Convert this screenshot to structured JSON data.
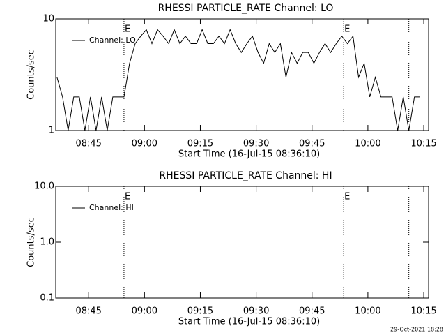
{
  "chart_data": [
    {
      "type": "line",
      "title": "RHESSI PARTICLE_RATE Channel: LO",
      "ylabel": "Counts/sec",
      "xlabel": "Start Time (16-Jul-15 08:36:10)",
      "log_y": true,
      "ylim": [
        1,
        10
      ],
      "yticks": [
        1,
        10
      ],
      "xlim": [
        516.17,
        616.3
      ],
      "xticks": [
        {
          "value": 525,
          "label": "08:45"
        },
        {
          "value": 540,
          "label": "09:00"
        },
        {
          "value": 555,
          "label": "09:15"
        },
        {
          "value": 570,
          "label": "09:30"
        },
        {
          "value": 585,
          "label": "09:45"
        },
        {
          "value": 600,
          "label": "10:00"
        },
        {
          "value": 615,
          "label": "10:15"
        }
      ],
      "markers": [
        {
          "x": 534.5,
          "label": "E"
        },
        {
          "x": 593.5,
          "label": "E"
        },
        {
          "x": 611
        }
      ],
      "x": [
        516.5,
        518,
        519.5,
        521,
        522.5,
        524,
        525.5,
        527,
        528.5,
        530,
        531.5,
        533,
        534.5,
        536,
        537.5,
        539,
        540.5,
        542,
        543.5,
        545,
        546.5,
        548,
        549.5,
        551,
        552.5,
        554,
        555.5,
        557,
        558.5,
        560,
        561.5,
        563,
        564.5,
        566,
        567.5,
        569,
        570.5,
        572,
        573.5,
        575,
        576.5,
        578,
        579.5,
        581,
        582.5,
        584,
        585.5,
        587,
        588.5,
        590,
        591.5,
        593,
        594.5,
        596,
        597.5,
        599,
        600.5,
        602,
        603.5,
        605,
        606.5,
        608,
        609.5,
        611,
        612.5,
        614
      ],
      "series": [
        {
          "name": "Channel: LO",
          "color": "#000000",
          "values": [
            3,
            2,
            1,
            2,
            2,
            1,
            2,
            1,
            2,
            1,
            2,
            2,
            2,
            4,
            6,
            7,
            8,
            6,
            8,
            7,
            6,
            8,
            6,
            7,
            6,
            6,
            8,
            6,
            6,
            7,
            6,
            8,
            6,
            5,
            6,
            7,
            5,
            4,
            6,
            5,
            6,
            3,
            5,
            4,
            5,
            5,
            4,
            5,
            6,
            5,
            6,
            7,
            6,
            7,
            3,
            4,
            2,
            3,
            2,
            2,
            2,
            1,
            2,
            1,
            2,
            2
          ]
        }
      ]
    },
    {
      "type": "line",
      "title": "RHESSI PARTICLE_RATE Channel: HI",
      "ylabel": "Counts/sec",
      "xlabel": "Start Time (16-Jul-15 08:36:10)",
      "log_y": true,
      "ylim": [
        0.1,
        10
      ],
      "yticks": [
        0.1,
        {
          "value": 1,
          "label": "1.0"
        },
        {
          "value": 10,
          "label": "10.0"
        }
      ],
      "xlim": [
        516.17,
        616.3
      ],
      "xticks": [
        {
          "value": 525,
          "label": "08:45"
        },
        {
          "value": 540,
          "label": "09:00"
        },
        {
          "value": 555,
          "label": "09:15"
        },
        {
          "value": 570,
          "label": "09:30"
        },
        {
          "value": 585,
          "label": "09:45"
        },
        {
          "value": 600,
          "label": "10:00"
        },
        {
          "value": 615,
          "label": "10:15"
        }
      ],
      "markers": [
        {
          "x": 534.5,
          "label": "E"
        },
        {
          "x": 593.5,
          "label": "E"
        },
        {
          "x": 611
        }
      ],
      "x": [],
      "series": [
        {
          "name": "Channel: HI",
          "color": "#000000",
          "values": []
        }
      ]
    }
  ],
  "footer": "29-Oct-2021 18:28"
}
